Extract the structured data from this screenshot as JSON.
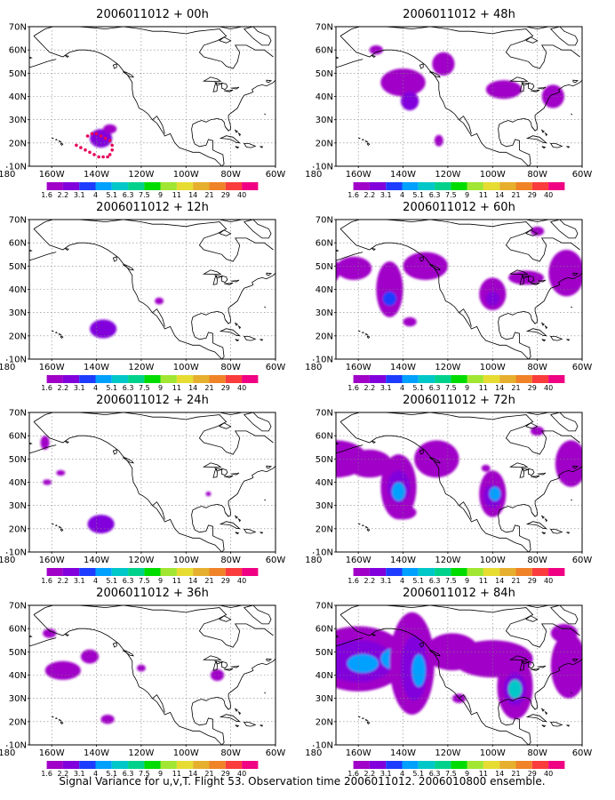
{
  "figure": {
    "caption": "Signal Variance for u,v,T. Flight 53. Observation time 2006011012. 2006010800 ensemble."
  },
  "map": {
    "lon_range": [
      170,
      60
    ],
    "lat_range": [
      10,
      70
    ],
    "x_ticks": [
      "180",
      "160W",
      "140W",
      "120W",
      "100W",
      "80W",
      "60W"
    ],
    "y_ticks": [
      "70N",
      "60N",
      "50N",
      "40N",
      "30N",
      "20N",
      "10N"
    ]
  },
  "colorbar": {
    "levels": [
      "1.6",
      "2.2",
      "3.1",
      "4",
      "5.1",
      "6.3",
      "7.5",
      "9",
      "11",
      "14",
      "21",
      "29",
      "40"
    ],
    "colors": [
      "#a000c8",
      "#8200dc",
      "#1e3cff",
      "#00a0ff",
      "#00c8c8",
      "#00d28c",
      "#00dc00",
      "#a0e632",
      "#e6dc32",
      "#e6af2d",
      "#f08228",
      "#fa3c3c",
      "#f00082"
    ]
  },
  "panels": [
    {
      "title": "2006011012 + 00h",
      "blobs": [
        {
          "lon": 138,
          "lat": 22,
          "rx": 5,
          "ry": 4,
          "lvl": 1
        },
        {
          "lon": 134,
          "lat": 26,
          "rx": 3,
          "ry": 2,
          "lvl": 0
        }
      ],
      "track": [
        [
          149,
          19
        ],
        [
          147,
          18
        ],
        [
          145,
          17
        ],
        [
          143,
          16
        ],
        [
          141,
          15
        ],
        [
          139,
          14
        ],
        [
          137,
          14
        ],
        [
          135,
          14
        ],
        [
          134,
          15
        ],
        [
          133,
          17
        ],
        [
          133,
          19
        ],
        [
          134,
          21
        ],
        [
          136,
          22
        ],
        [
          138,
          23
        ],
        [
          140,
          24
        ],
        [
          142,
          24
        ],
        [
          144,
          23
        ]
      ]
    },
    {
      "title": "2006011012 + 12h",
      "blobs": [
        {
          "lon": 137,
          "lat": 23,
          "rx": 6,
          "ry": 4,
          "lvl": 1
        },
        {
          "lon": 112,
          "lat": 35,
          "rx": 2,
          "ry": 1.5,
          "lvl": 0
        }
      ]
    },
    {
      "title": "2006011012 + 24h",
      "blobs": [
        {
          "lon": 163,
          "lat": 57,
          "rx": 2,
          "ry": 3,
          "lvl": 0
        },
        {
          "lon": 156,
          "lat": 44,
          "rx": 2,
          "ry": 1.2,
          "lvl": 0
        },
        {
          "lon": 162,
          "lat": 40,
          "rx": 2,
          "ry": 1.2,
          "lvl": 0
        },
        {
          "lon": 138,
          "lat": 22,
          "rx": 6,
          "ry": 4,
          "lvl": 1
        },
        {
          "lon": 90,
          "lat": 35,
          "rx": 1.2,
          "ry": 1,
          "lvl": 0
        }
      ]
    },
    {
      "title": "2006011012 + 36h",
      "blobs": [
        {
          "lon": 175,
          "lat": 44,
          "rx": 4,
          "ry": 5,
          "lvl": 0
        },
        {
          "lon": 161,
          "lat": 58,
          "rx": 3,
          "ry": 2,
          "lvl": 0
        },
        {
          "lon": 155,
          "lat": 42,
          "rx": 8,
          "ry": 4,
          "lvl": 0
        },
        {
          "lon": 143,
          "lat": 48,
          "rx": 4,
          "ry": 3,
          "lvl": 0
        },
        {
          "lon": 120,
          "lat": 43,
          "rx": 2,
          "ry": 1.5,
          "lvl": 0
        },
        {
          "lon": 86,
          "lat": 40,
          "rx": 3,
          "ry": 2.5,
          "lvl": 0
        },
        {
          "lon": 135,
          "lat": 21,
          "rx": 3,
          "ry": 2,
          "lvl": 0
        }
      ]
    },
    {
      "title": "2006011012 + 48h",
      "blobs": [
        {
          "lon": 180,
          "lat": 47,
          "rx": 5,
          "ry": 5,
          "lvl": 1
        },
        {
          "lon": 152,
          "lat": 60,
          "rx": 3,
          "ry": 2,
          "lvl": 0
        },
        {
          "lon": 140,
          "lat": 46,
          "rx": 10,
          "ry": 6,
          "lvl": 0
        },
        {
          "lon": 137,
          "lat": 38,
          "rx": 4,
          "ry": 4,
          "lvl": 1
        },
        {
          "lon": 122,
          "lat": 54,
          "rx": 5,
          "ry": 5,
          "lvl": 0
        },
        {
          "lon": 124,
          "lat": 21,
          "rx": 2,
          "ry": 2.5,
          "lvl": 0
        },
        {
          "lon": 95,
          "lat": 43,
          "rx": 8,
          "ry": 4,
          "lvl": 0
        },
        {
          "lon": 73,
          "lat": 40,
          "rx": 5,
          "ry": 5,
          "lvl": 0
        }
      ]
    },
    {
      "title": "2006011012 + 60h",
      "blobs": [
        {
          "lon": 178,
          "lat": 48,
          "rx": 10,
          "ry": 7,
          "lvl": 0
        },
        {
          "lon": 180,
          "lat": 47,
          "rx": 4,
          "ry": 3,
          "lvl": 1
        },
        {
          "lon": 162,
          "lat": 49,
          "rx": 8,
          "ry": 5,
          "lvl": 0
        },
        {
          "lon": 146,
          "lat": 40,
          "rx": 6,
          "ry": 12,
          "lvl": 0
        },
        {
          "lon": 146,
          "lat": 36,
          "rx": 3,
          "ry": 3,
          "lvl": 2
        },
        {
          "lon": 130,
          "lat": 50,
          "rx": 10,
          "ry": 6,
          "lvl": 0
        },
        {
          "lon": 137,
          "lat": 26,
          "rx": 3,
          "ry": 2,
          "lvl": 0
        },
        {
          "lon": 100,
          "lat": 38,
          "rx": 6,
          "ry": 7,
          "lvl": 0
        },
        {
          "lon": 100,
          "lat": 36,
          "rx": 3,
          "ry": 3,
          "lvl": 1
        },
        {
          "lon": 85,
          "lat": 45,
          "rx": 8,
          "ry": 3,
          "lvl": 0
        },
        {
          "lon": 80,
          "lat": 65,
          "rx": 3,
          "ry": 2,
          "lvl": 0
        },
        {
          "lon": 67,
          "lat": 47,
          "rx": 8,
          "ry": 10,
          "lvl": 0
        }
      ]
    },
    {
      "title": "2006011012 + 72h",
      "blobs": [
        {
          "lon": 170,
          "lat": 50,
          "rx": 14,
          "ry": 8,
          "lvl": 0
        },
        {
          "lon": 178,
          "lat": 49,
          "rx": 6,
          "ry": 4,
          "lvl": 1
        },
        {
          "lon": 155,
          "lat": 48,
          "rx": 10,
          "ry": 6,
          "lvl": 0
        },
        {
          "lon": 142,
          "lat": 38,
          "rx": 8,
          "ry": 14,
          "lvl": 0
        },
        {
          "lon": 142,
          "lat": 38,
          "rx": 5,
          "ry": 7,
          "lvl": 1
        },
        {
          "lon": 142,
          "lat": 36,
          "rx": 3,
          "ry": 4,
          "lvl": 3
        },
        {
          "lon": 125,
          "lat": 50,
          "rx": 10,
          "ry": 8,
          "lvl": 0
        },
        {
          "lon": 140,
          "lat": 27,
          "rx": 6,
          "ry": 3,
          "lvl": 0
        },
        {
          "lon": 100,
          "lat": 35,
          "rx": 6,
          "ry": 10,
          "lvl": 0
        },
        {
          "lon": 100,
          "lat": 34,
          "rx": 4,
          "ry": 5,
          "lvl": 1
        },
        {
          "lon": 99,
          "lat": 35,
          "rx": 2.5,
          "ry": 3,
          "lvl": 3
        },
        {
          "lon": 103,
          "lat": 46,
          "rx": 2,
          "ry": 1.5,
          "lvl": 0
        },
        {
          "lon": 80,
          "lat": 62,
          "rx": 3,
          "ry": 2,
          "lvl": 0
        },
        {
          "lon": 65,
          "lat": 48,
          "rx": 7,
          "ry": 10,
          "lvl": 0
        }
      ]
    },
    {
      "title": "2006011012 + 84h",
      "blobs": [
        {
          "lon": 160,
          "lat": 47,
          "rx": 22,
          "ry": 14,
          "lvl": 0
        },
        {
          "lon": 160,
          "lat": 46,
          "rx": 16,
          "ry": 9,
          "lvl": 1
        },
        {
          "lon": 158,
          "lat": 45,
          "rx": 7,
          "ry": 4,
          "lvl": 3
        },
        {
          "lon": 142,
          "lat": 47,
          "rx": 8,
          "ry": 5,
          "lvl": 3
        },
        {
          "lon": 136,
          "lat": 45,
          "rx": 10,
          "ry": 22,
          "lvl": 0
        },
        {
          "lon": 135,
          "lat": 43,
          "rx": 6,
          "ry": 14,
          "lvl": 1
        },
        {
          "lon": 133,
          "lat": 42,
          "rx": 3,
          "ry": 7,
          "lvl": 3
        },
        {
          "lon": 118,
          "lat": 50,
          "rx": 12,
          "ry": 8,
          "lvl": 0
        },
        {
          "lon": 100,
          "lat": 47,
          "rx": 18,
          "ry": 8,
          "lvl": 0
        },
        {
          "lon": 90,
          "lat": 35,
          "rx": 8,
          "ry": 14,
          "lvl": 0
        },
        {
          "lon": 90,
          "lat": 34,
          "rx": 5,
          "ry": 7,
          "lvl": 1
        },
        {
          "lon": 90,
          "lat": 34,
          "rx": 3,
          "ry": 4,
          "lvl": 4
        },
        {
          "lon": 66,
          "lat": 44,
          "rx": 8,
          "ry": 14,
          "lvl": 0
        },
        {
          "lon": 68,
          "lat": 58,
          "rx": 6,
          "ry": 4,
          "lvl": 0
        },
        {
          "lon": 115,
          "lat": 30,
          "rx": 3,
          "ry": 2,
          "lvl": 0
        }
      ]
    }
  ]
}
